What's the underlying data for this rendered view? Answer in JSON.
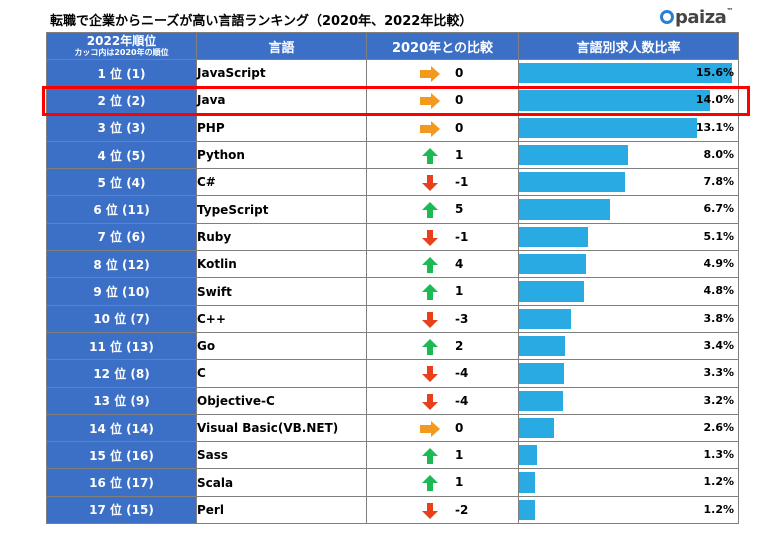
{
  "title": "転職で企業からニーズが高い言語ランキング（2020年、2022年比較）",
  "logo_text": "paiza",
  "logo_mark": "™",
  "headers": {
    "rank_main": "2022年順位",
    "rank_sub": "カッコ内は2020年の順位",
    "language": "言語",
    "comparison": "2020年との比較",
    "ratio": "言語別求人数比率"
  },
  "colors": {
    "header_bg": "#3c6fc6",
    "bar": "#29aae2",
    "up": "#1db954",
    "down": "#e8401c",
    "flat": "#f39a1e",
    "highlight": "#ff0000"
  },
  "chart_data": {
    "type": "table",
    "title": "転職で企業からニーズが高い言語ランキング（2020年、2022年比較）",
    "columns": [
      "2022年順位",
      "言語",
      "2020年との比較",
      "言語別求人数比率"
    ],
    "xlim": [
      0,
      16
    ],
    "highlighted_rank": 2,
    "rows": [
      {
        "rank_label": "1 位 (1)",
        "language": "JavaScript",
        "trend": "flat",
        "change_label": "0",
        "percent": 15.6,
        "percent_label": "15.6%"
      },
      {
        "rank_label": "2 位 (2)",
        "language": "Java",
        "trend": "flat",
        "change_label": "0",
        "percent": 14.0,
        "percent_label": "14.0%"
      },
      {
        "rank_label": "3 位 (3)",
        "language": "PHP",
        "trend": "flat",
        "change_label": "0",
        "percent": 13.1,
        "percent_label": "13.1%"
      },
      {
        "rank_label": "4 位 (5)",
        "language": "Python",
        "trend": "up",
        "change_label": "1",
        "percent": 8.0,
        "percent_label": "8.0%"
      },
      {
        "rank_label": "5 位 (4)",
        "language": "C#",
        "trend": "down",
        "change_label": "-1",
        "percent": 7.8,
        "percent_label": "7.8%"
      },
      {
        "rank_label": "6 位 (11)",
        "language": "TypeScript",
        "trend": "up",
        "change_label": "5",
        "percent": 6.7,
        "percent_label": "6.7%"
      },
      {
        "rank_label": "7 位 (6)",
        "language": "Ruby",
        "trend": "down",
        "change_label": "-1",
        "percent": 5.1,
        "percent_label": "5.1%"
      },
      {
        "rank_label": "8 位 (12)",
        "language": "Kotlin",
        "trend": "up",
        "change_label": "4",
        "percent": 4.9,
        "percent_label": "4.9%"
      },
      {
        "rank_label": "9 位 (10)",
        "language": "Swift",
        "trend": "up",
        "change_label": "1",
        "percent": 4.8,
        "percent_label": "4.8%"
      },
      {
        "rank_label": "10 位 (7)",
        "language": "C++",
        "trend": "down",
        "change_label": "-3",
        "percent": 3.8,
        "percent_label": "3.8%"
      },
      {
        "rank_label": "11 位 (13)",
        "language": "Go",
        "trend": "up",
        "change_label": "2",
        "percent": 3.4,
        "percent_label": "3.4%"
      },
      {
        "rank_label": "12 位 (8)",
        "language": "C",
        "trend": "down",
        "change_label": "-4",
        "percent": 3.3,
        "percent_label": "3.3%"
      },
      {
        "rank_label": "13 位 (9)",
        "language": "Objective-C",
        "trend": "down",
        "change_label": "-4",
        "percent": 3.2,
        "percent_label": "3.2%"
      },
      {
        "rank_label": "14 位 (14)",
        "language": "Visual Basic(VB.NET)",
        "trend": "flat",
        "change_label": "0",
        "percent": 2.6,
        "percent_label": "2.6%"
      },
      {
        "rank_label": "15 位 (16)",
        "language": "Sass",
        "trend": "up",
        "change_label": "1",
        "percent": 1.3,
        "percent_label": "1.3%"
      },
      {
        "rank_label": "16 位 (17)",
        "language": "Scala",
        "trend": "up",
        "change_label": "1",
        "percent": 1.2,
        "percent_label": "1.2%"
      },
      {
        "rank_label": "17 位 (15)",
        "language": "Perl",
        "trend": "down",
        "change_label": "-2",
        "percent": 1.2,
        "percent_label": "1.2%"
      }
    ]
  }
}
